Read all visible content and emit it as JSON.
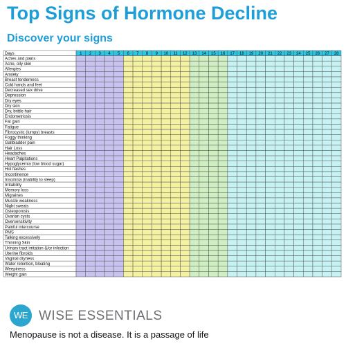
{
  "header": {
    "title": "Top Signs of Hormone Decline",
    "subtitle": "Discover your signs"
  },
  "table": {
    "header_label": "Days",
    "days": [
      1,
      2,
      3,
      4,
      5,
      6,
      7,
      8,
      9,
      10,
      11,
      12,
      13,
      14,
      15,
      16,
      17,
      18,
      19,
      20,
      21,
      22,
      23,
      24,
      25,
      26,
      27,
      28
    ],
    "rows": [
      "Aches and pains",
      "Acne, oily skin",
      "Allergies",
      "Anxiety",
      "Breast tenderness",
      "Cold hands and feet",
      "Decreased sex drive",
      "Depression",
      "Dry eyes",
      "Dry skin",
      "Dry, brittle hair",
      "Endometriosis",
      "Fat gain",
      "Fatigue",
      "Fibrocystic (lumpy) breasts",
      "Foggy thinking",
      "Gallbladder pain",
      "Hair Loss",
      "Headaches",
      "Heart Palpitations",
      "Hypoglycemia (low blood sugar)",
      "Hot flashes",
      "Incontinence",
      "Insomnia (inability to sleep)",
      "Irritability",
      "Memory loss",
      "Migraines",
      "Muscle weakness",
      "Night sweats",
      "Osteoporosis",
      "Ovarian cysts",
      "Oversensitivity",
      "Painful intercourse",
      "PMS",
      "Talking excessively",
      "Thinning Skin",
      "Urinary tract irritation &/or infection",
      "Uterine fibroids",
      "Vaginal dryness",
      "Water retention, bloating",
      "Weepiness",
      "Weight gain"
    ]
  },
  "footer": {
    "logo": "WE",
    "brand": "WISE ESSENTIALS",
    "tagline": "Menopause is not a disease. It is a passage of life"
  }
}
